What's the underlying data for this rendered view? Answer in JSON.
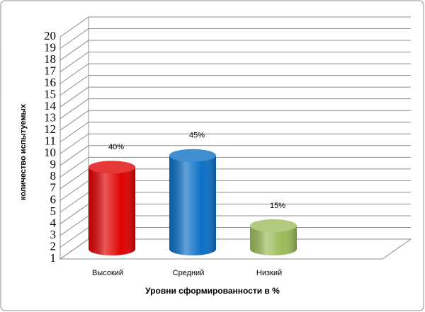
{
  "chart_data": {
    "type": "bar3d",
    "x_label": "Уровни сформированности в %",
    "y_label": "количество испытуемых",
    "categories": [
      "Высокий",
      "Средний",
      "Низкий"
    ],
    "values": [
      8,
      9,
      3
    ],
    "value_labels": [
      "40%",
      "45%",
      "15%"
    ],
    "colors": [
      "#e00000",
      "#0b6fc6",
      "#9bbb59"
    ],
    "ylim": [
      1,
      20
    ],
    "yticks": [
      1,
      2,
      3,
      4,
      5,
      6,
      7,
      8,
      9,
      10,
      11,
      12,
      13,
      14,
      15,
      16,
      17,
      18,
      19,
      20
    ],
    "grid": true
  }
}
